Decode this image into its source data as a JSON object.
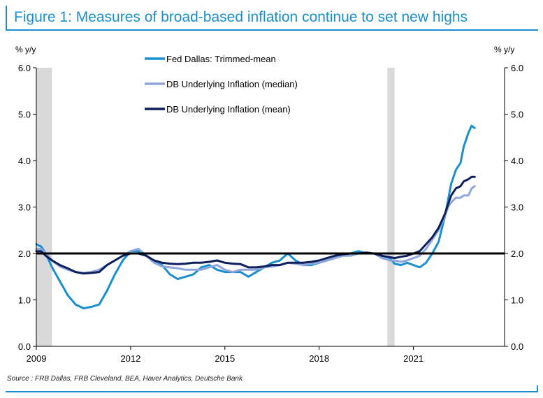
{
  "figure": {
    "title": "Figure 1: Measures of broad-based inflation continue to set new highs",
    "source": "Source : FRB Dallas, FRB Cleveland, BEA, Haver Analytics, Deutsche Bank"
  },
  "chart_data": {
    "type": "line",
    "ylabel_left": "% y/y",
    "ylabel_right": "% y/y",
    "ylim": [
      0,
      6
    ],
    "yticks": [
      "0.0",
      "1.0",
      "2.0",
      "3.0",
      "4.0",
      "5.0",
      "6.0"
    ],
    "xlim": [
      2009,
      2023.9
    ],
    "xticks": [
      "2009",
      "2012",
      "2015",
      "2018",
      "2021"
    ],
    "reference_line": 2.0,
    "shaded_periods": [
      [
        2009.0,
        2009.5
      ],
      [
        2020.17,
        2020.4
      ]
    ],
    "legend_position": "top-center",
    "series": [
      {
        "name": "Fed Dallas: Trimmed-mean",
        "color": "#1a8fd0",
        "x": [
          2009.0,
          2009.15,
          2009.3,
          2009.5,
          2009.75,
          2010.0,
          2010.25,
          2010.5,
          2010.75,
          2011.0,
          2011.25,
          2011.5,
          2011.75,
          2012.0,
          2012.25,
          2012.5,
          2012.75,
          2013.0,
          2013.25,
          2013.5,
          2013.75,
          2014.0,
          2014.25,
          2014.5,
          2014.75,
          2015.0,
          2015.25,
          2015.5,
          2015.75,
          2016.0,
          2016.25,
          2016.5,
          2016.75,
          2017.0,
          2017.25,
          2017.5,
          2017.75,
          2018.0,
          2018.25,
          2018.5,
          2018.75,
          2019.0,
          2019.25,
          2019.5,
          2019.75,
          2020.0,
          2020.25,
          2020.4,
          2020.6,
          2020.8,
          2021.0,
          2021.2,
          2021.4,
          2021.6,
          2021.8,
          2022.0,
          2022.1,
          2022.2,
          2022.35,
          2022.5,
          2022.6,
          2022.75,
          2022.85,
          2022.95
        ],
        "values": [
          2.2,
          2.15,
          2.0,
          1.7,
          1.4,
          1.1,
          0.9,
          0.82,
          0.85,
          0.9,
          1.2,
          1.55,
          1.85,
          2.05,
          2.05,
          1.95,
          1.8,
          1.75,
          1.55,
          1.45,
          1.5,
          1.55,
          1.7,
          1.75,
          1.65,
          1.6,
          1.6,
          1.6,
          1.5,
          1.6,
          1.7,
          1.8,
          1.85,
          2.0,
          1.85,
          1.75,
          1.75,
          1.8,
          1.85,
          1.9,
          2.0,
          2.0,
          2.05,
          2.0,
          2.0,
          1.95,
          1.9,
          1.78,
          1.75,
          1.8,
          1.75,
          1.7,
          1.8,
          2.0,
          2.25,
          2.8,
          3.15,
          3.5,
          3.8,
          3.95,
          4.3,
          4.6,
          4.75,
          4.7
        ]
      },
      {
        "name": "DB Underlying Inflation (median)",
        "color": "#8ea6dc",
        "x": [
          2009.0,
          2009.15,
          2009.3,
          2009.5,
          2009.75,
          2010.0,
          2010.25,
          2010.5,
          2010.75,
          2011.0,
          2011.25,
          2011.5,
          2011.75,
          2012.0,
          2012.25,
          2012.5,
          2012.75,
          2013.0,
          2013.25,
          2013.5,
          2013.75,
          2014.0,
          2014.25,
          2014.5,
          2014.75,
          2015.0,
          2015.25,
          2015.5,
          2015.75,
          2016.0,
          2016.25,
          2016.5,
          2016.75,
          2017.0,
          2017.25,
          2017.5,
          2017.75,
          2018.0,
          2018.25,
          2018.5,
          2018.75,
          2019.0,
          2019.25,
          2019.5,
          2019.75,
          2020.0,
          2020.25,
          2020.4,
          2020.6,
          2020.8,
          2021.0,
          2021.2,
          2021.4,
          2021.6,
          2021.8,
          2022.0,
          2022.1,
          2022.2,
          2022.35,
          2022.5,
          2022.6,
          2022.75,
          2022.85,
          2022.95
        ],
        "values": [
          2.1,
          2.1,
          2.0,
          1.85,
          1.72,
          1.65,
          1.6,
          1.58,
          1.6,
          1.65,
          1.75,
          1.85,
          1.95,
          2.05,
          2.1,
          1.95,
          1.8,
          1.72,
          1.7,
          1.68,
          1.65,
          1.65,
          1.65,
          1.7,
          1.75,
          1.65,
          1.6,
          1.65,
          1.65,
          1.65,
          1.7,
          1.72,
          1.75,
          1.8,
          1.78,
          1.75,
          1.78,
          1.8,
          1.85,
          1.9,
          1.95,
          1.95,
          2.0,
          2.0,
          2.0,
          1.9,
          1.85,
          1.85,
          1.82,
          1.85,
          1.9,
          1.95,
          2.1,
          2.3,
          2.5,
          2.8,
          3.0,
          3.1,
          3.2,
          3.2,
          3.25,
          3.25,
          3.4,
          3.45
        ]
      },
      {
        "name": "DB Underlying Inflation (mean)",
        "color": "#0d1f5c",
        "x": [
          2009.0,
          2009.15,
          2009.3,
          2009.5,
          2009.75,
          2010.0,
          2010.25,
          2010.5,
          2010.75,
          2011.0,
          2011.25,
          2011.5,
          2011.75,
          2012.0,
          2012.25,
          2012.5,
          2012.75,
          2013.0,
          2013.25,
          2013.5,
          2013.75,
          2014.0,
          2014.25,
          2014.5,
          2014.75,
          2015.0,
          2015.25,
          2015.5,
          2015.75,
          2016.0,
          2016.25,
          2016.5,
          2016.75,
          2017.0,
          2017.25,
          2017.5,
          2017.75,
          2018.0,
          2018.25,
          2018.5,
          2018.75,
          2019.0,
          2019.25,
          2019.5,
          2019.75,
          2020.0,
          2020.25,
          2020.4,
          2020.6,
          2020.8,
          2021.0,
          2021.2,
          2021.4,
          2021.6,
          2021.8,
          2022.0,
          2022.1,
          2022.2,
          2022.35,
          2022.5,
          2022.6,
          2022.75,
          2022.85,
          2022.95
        ],
        "values": [
          2.05,
          2.05,
          1.95,
          1.85,
          1.75,
          1.68,
          1.6,
          1.57,
          1.58,
          1.6,
          1.75,
          1.85,
          1.95,
          2.0,
          2.0,
          1.95,
          1.85,
          1.8,
          1.78,
          1.77,
          1.78,
          1.8,
          1.8,
          1.82,
          1.85,
          1.8,
          1.78,
          1.77,
          1.7,
          1.7,
          1.72,
          1.75,
          1.75,
          1.8,
          1.8,
          1.8,
          1.82,
          1.85,
          1.9,
          1.95,
          1.98,
          2.0,
          2.0,
          2.02,
          2.0,
          1.95,
          1.92,
          1.9,
          1.93,
          1.95,
          2.0,
          2.05,
          2.2,
          2.35,
          2.55,
          2.85,
          3.05,
          3.25,
          3.4,
          3.45,
          3.55,
          3.6,
          3.65,
          3.65
        ]
      }
    ]
  }
}
